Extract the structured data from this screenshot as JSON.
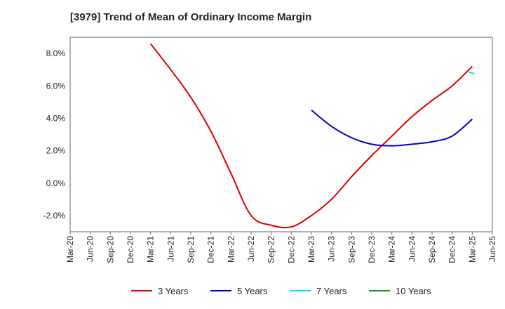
{
  "chart_data": {
    "type": "line",
    "title": "[3979]  Trend of Mean of Ordinary Income Margin",
    "xlabel": "",
    "ylabel": "",
    "x_ticks": [
      "Mar-20",
      "Jun-20",
      "Sep-20",
      "Dec-20",
      "Mar-21",
      "Jun-21",
      "Sep-21",
      "Dec-21",
      "Mar-22",
      "Jun-22",
      "Sep-22",
      "Dec-22",
      "Mar-23",
      "Jun-23",
      "Sep-23",
      "Dec-23",
      "Mar-24",
      "Jun-24",
      "Sep-24",
      "Dec-24",
      "Mar-25",
      "Jun-25"
    ],
    "y_ticks": [
      "8.0%",
      "6.0%",
      "4.0%",
      "2.0%",
      "0.0%",
      "-2.0%"
    ],
    "y_tick_values": [
      8,
      6,
      4,
      2,
      0,
      -2
    ],
    "ylim": [
      -3.0,
      9.0
    ],
    "grid": true,
    "legend_position": "bottom",
    "series": [
      {
        "name": "3 Years",
        "color": "#dd0000",
        "x": [
          "Mar-21",
          "Jun-21",
          "Sep-21",
          "Dec-21",
          "Mar-22",
          "Jun-22",
          "Sep-22",
          "Dec-22",
          "Mar-23",
          "Jun-23",
          "Sep-23",
          "Dec-23",
          "Mar-24",
          "Jun-24",
          "Sep-24",
          "Dec-24",
          "Mar-25"
        ],
        "values": [
          8.6,
          7.0,
          5.3,
          3.2,
          0.6,
          -2.0,
          -2.6,
          -2.7,
          -2.0,
          -1.0,
          0.4,
          1.7,
          2.9,
          4.1,
          5.1,
          6.0,
          7.2
        ]
      },
      {
        "name": "5 Years",
        "color": "#0000cc",
        "x": [
          "Mar-23",
          "Jun-23",
          "Sep-23",
          "Dec-23",
          "Mar-24",
          "Jun-24",
          "Sep-24",
          "Dec-24",
          "Mar-25"
        ],
        "values": [
          4.5,
          3.5,
          2.8,
          2.4,
          2.3,
          2.4,
          2.55,
          2.9,
          3.95
        ]
      },
      {
        "name": "7 Years",
        "color": "#00e5ee",
        "x": [
          "Mar-25"
        ],
        "values": [
          6.8
        ]
      },
      {
        "name": "10 Years",
        "color": "#228b22",
        "x": [],
        "values": []
      }
    ]
  }
}
